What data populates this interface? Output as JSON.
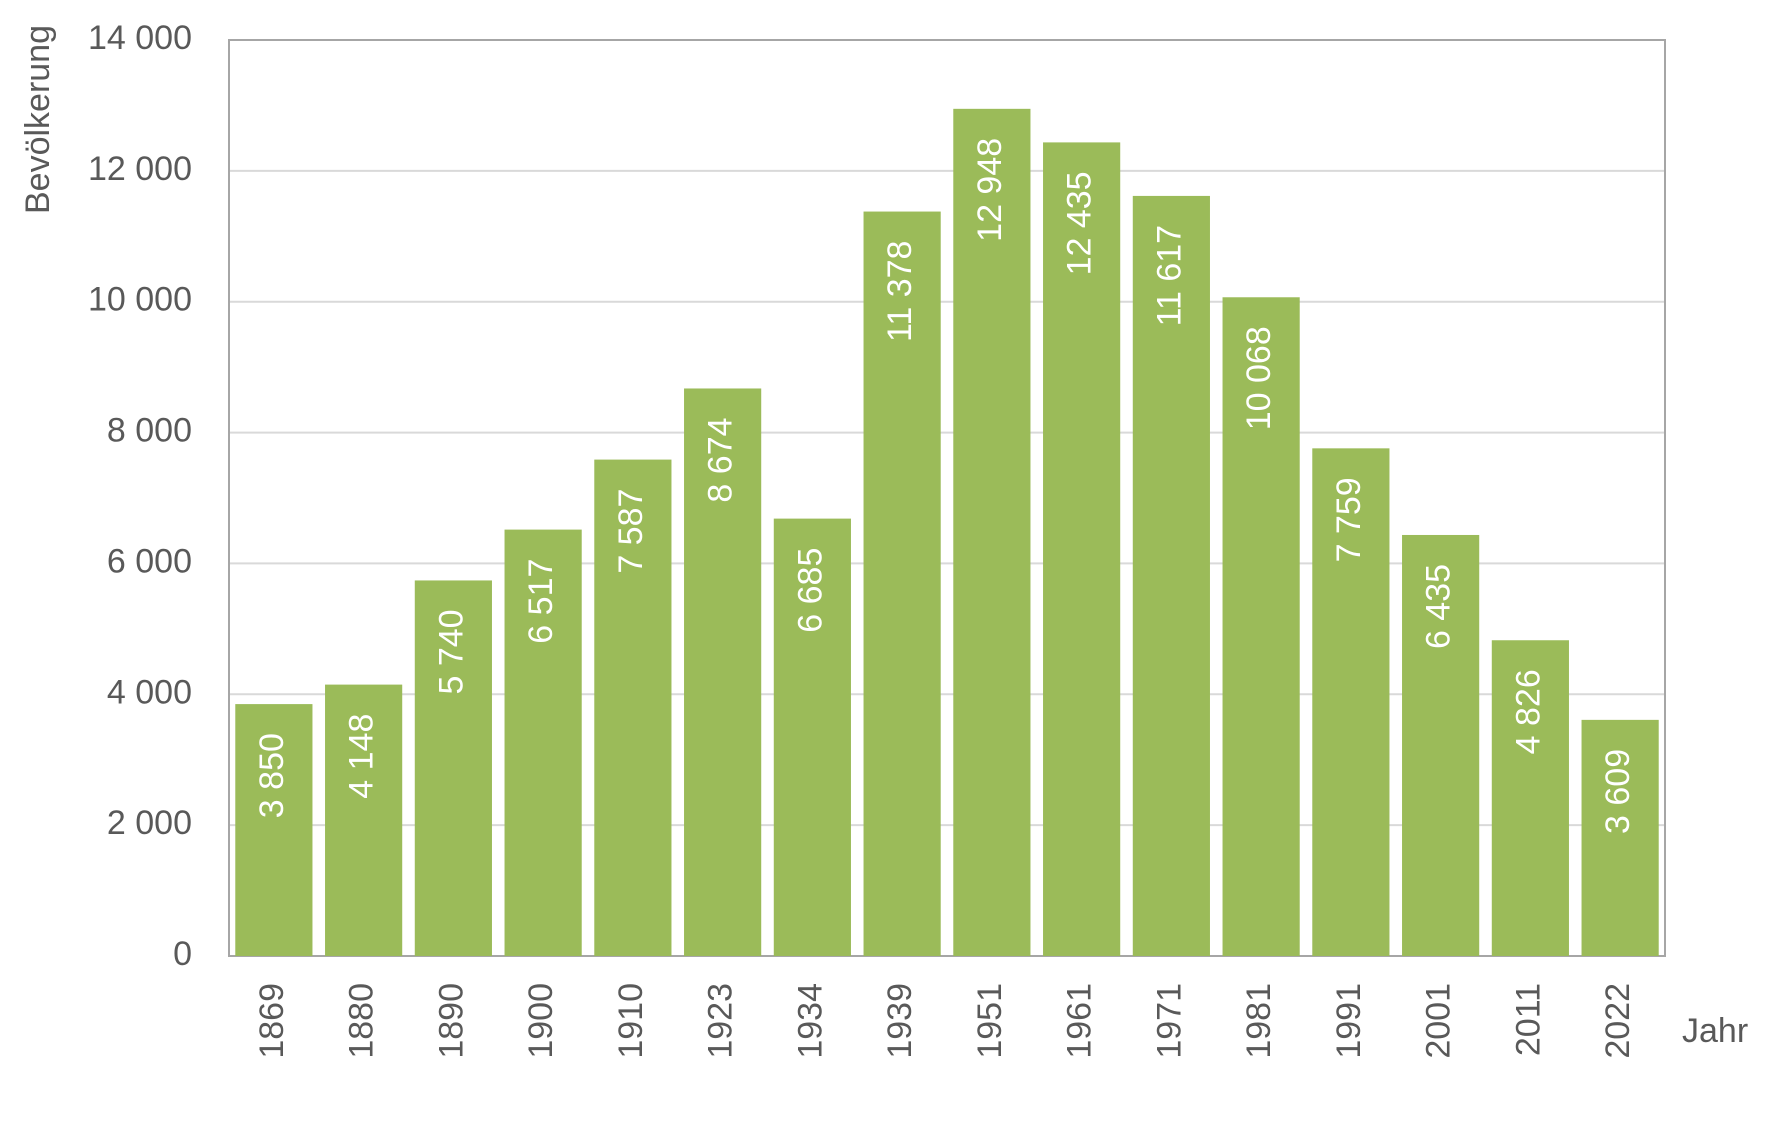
{
  "chart_data": {
    "type": "bar",
    "y_label": "Bevölkerung",
    "x_label": "Jahr",
    "categories": [
      "1869",
      "1880",
      "1890",
      "1900",
      "1910",
      "1923",
      "1934",
      "1939",
      "1951",
      "1961",
      "1971",
      "1981",
      "1991",
      "2001",
      "2011",
      "2022"
    ],
    "values": [
      3850,
      4148,
      5740,
      6517,
      7587,
      8674,
      6685,
      11378,
      12948,
      12435,
      11617,
      10068,
      7759,
      6435,
      4826,
      3609
    ],
    "value_labels": [
      "3 850",
      "4 148",
      "5 740",
      "6 517",
      "7 587",
      "8 674",
      "6 685",
      "11 378",
      "12 948",
      "12 435",
      "11 617",
      "10 068",
      "7 759",
      "6 435",
      "4 826",
      "3 609"
    ],
    "color": "#9bbb59",
    "ylim": [
      0,
      14000
    ],
    "yticks": [
      0,
      {
        "value": 2000,
        "label": "2 000"
      },
      {
        "value": 4000,
        "label": "4 000"
      },
      {
        "value": 6000,
        "label": "6 000"
      },
      {
        "value": 8000,
        "label": "8 000"
      },
      {
        "value": 10000,
        "label": "10 000"
      },
      {
        "value": 12000,
        "label": "12 000"
      },
      {
        "value": 14000,
        "label": "14 000"
      }
    ],
    "grid": true
  }
}
